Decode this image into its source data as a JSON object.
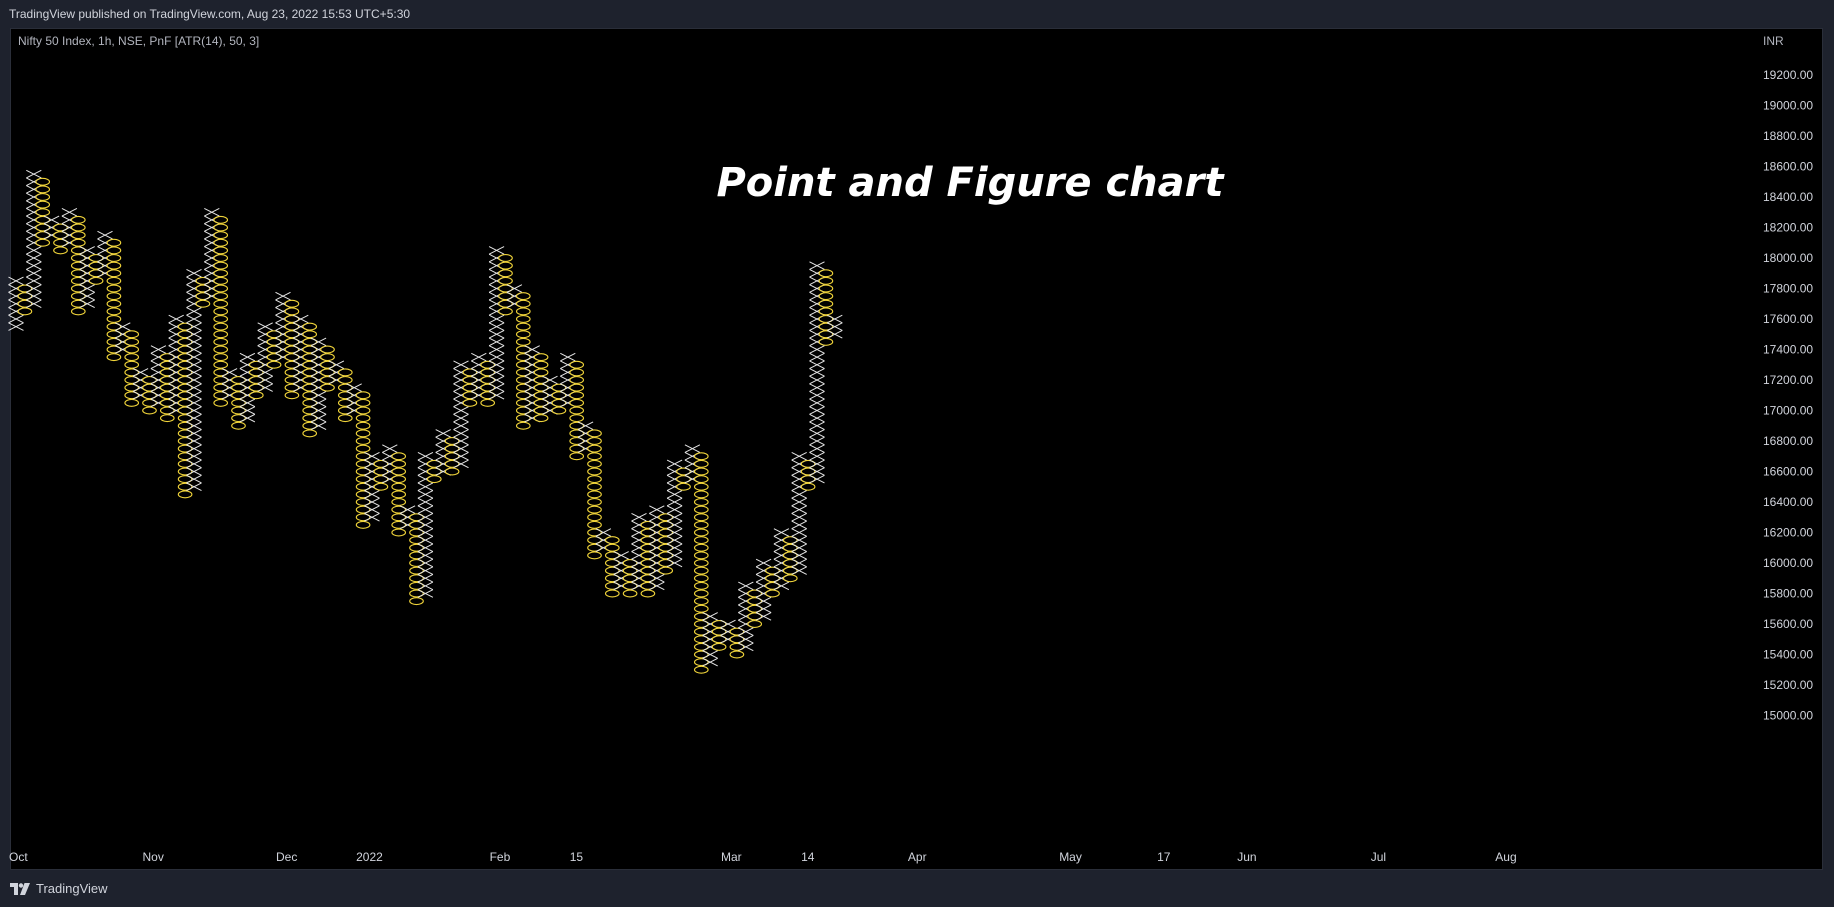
{
  "header": {
    "published": "TradingView published on TradingView.com, Aug 23, 2022 15:53 UTC+5:30"
  },
  "legend": {
    "symbol": "Nifty 50 Index, 1h, NSE, PnF [ATR(14), 50, 3]"
  },
  "headline": "Point and Figure chart",
  "footer": {
    "brand": "TradingView"
  },
  "colors": {
    "x_column": "#e6e6e6",
    "o_column": "#f0d43a",
    "background": "#000000",
    "frame": "#1e222d"
  },
  "chart_data": {
    "type": "point-and-figure",
    "box_size": 50,
    "reversal": 3,
    "currency": "INR",
    "y_ticks": [
      "19200.00",
      "19000.00",
      "18800.00",
      "18600.00",
      "18400.00",
      "18200.00",
      "18000.00",
      "17800.00",
      "17600.00",
      "17400.00",
      "17200.00",
      "17000.00",
      "16800.00",
      "16600.00",
      "16400.00",
      "16200.00",
      "16000.00",
      "15800.00",
      "15600.00",
      "15400.00",
      "15200.00",
      "15000.00"
    ],
    "y_tick_values": [
      19200,
      19000,
      18800,
      18600,
      18400,
      18200,
      18000,
      17800,
      17600,
      17400,
      17200,
      17000,
      16800,
      16600,
      16400,
      16200,
      16000,
      15800,
      15600,
      15400,
      15200,
      15000
    ],
    "x_labels": [
      {
        "label": "Oct",
        "column": 0
      },
      {
        "label": "Nov",
        "column": 15
      },
      {
        "label": "Dec",
        "column": 30
      },
      {
        "label": "2022",
        "column": 39
      },
      {
        "label": "Feb",
        "column": 54
      },
      {
        "label": "15",
        "column": 63
      },
      {
        "label": "Mar",
        "column": 80
      },
      {
        "label": "14",
        "column": 89
      },
      {
        "label": "Apr",
        "column": 101
      },
      {
        "label": "May",
        "column": 118
      },
      {
        "label": "17",
        "column": 129
      },
      {
        "label": "Jun",
        "column": 138
      },
      {
        "label": "Jul",
        "column": 153
      },
      {
        "label": "Aug",
        "column": 167
      }
    ],
    "columns": [
      {
        "t": "X",
        "lo": 17550,
        "hi": 17850
      },
      {
        "t": "O",
        "lo": 17650,
        "hi": 17800
      },
      {
        "t": "X",
        "lo": 17700,
        "hi": 18550
      },
      {
        "t": "O",
        "lo": 18100,
        "hi": 18500
      },
      {
        "t": "X",
        "lo": 18150,
        "hi": 18250
      },
      {
        "t": "O",
        "lo": 18050,
        "hi": 18200
      },
      {
        "t": "X",
        "lo": 18100,
        "hi": 18300
      },
      {
        "t": "O",
        "lo": 17650,
        "hi": 18250
      },
      {
        "t": "X",
        "lo": 17700,
        "hi": 18050
      },
      {
        "t": "O",
        "lo": 17850,
        "hi": 18000
      },
      {
        "t": "X",
        "lo": 17900,
        "hi": 18150
      },
      {
        "t": "O",
        "lo": 17350,
        "hi": 18100
      },
      {
        "t": "X",
        "lo": 17400,
        "hi": 17550
      },
      {
        "t": "O",
        "lo": 17050,
        "hi": 17500
      },
      {
        "t": "X",
        "lo": 17100,
        "hi": 17250
      },
      {
        "t": "O",
        "lo": 17000,
        "hi": 17200
      },
      {
        "t": "X",
        "lo": 17050,
        "hi": 17400
      },
      {
        "t": "O",
        "lo": 16950,
        "hi": 17350
      },
      {
        "t": "X",
        "lo": 17000,
        "hi": 17600
      },
      {
        "t": "O",
        "lo": 16450,
        "hi": 17550
      },
      {
        "t": "X",
        "lo": 16500,
        "hi": 17900
      },
      {
        "t": "O",
        "lo": 17700,
        "hi": 17850
      },
      {
        "t": "X",
        "lo": 17750,
        "hi": 18300
      },
      {
        "t": "O",
        "lo": 17050,
        "hi": 18250
      },
      {
        "t": "X",
        "lo": 17100,
        "hi": 17250
      },
      {
        "t": "O",
        "lo": 16900,
        "hi": 17200
      },
      {
        "t": "X",
        "lo": 16950,
        "hi": 17350
      },
      {
        "t": "O",
        "lo": 17100,
        "hi": 17300
      },
      {
        "t": "X",
        "lo": 17150,
        "hi": 17550
      },
      {
        "t": "O",
        "lo": 17300,
        "hi": 17500
      },
      {
        "t": "X",
        "lo": 17350,
        "hi": 17750
      },
      {
        "t": "O",
        "lo": 17100,
        "hi": 17700
      },
      {
        "t": "X",
        "lo": 17150,
        "hi": 17600
      },
      {
        "t": "O",
        "lo": 16850,
        "hi": 17550
      },
      {
        "t": "X",
        "lo": 16900,
        "hi": 17450
      },
      {
        "t": "O",
        "lo": 17150,
        "hi": 17400
      },
      {
        "t": "X",
        "lo": 17200,
        "hi": 17300
      },
      {
        "t": "O",
        "lo": 16950,
        "hi": 17250
      },
      {
        "t": "X",
        "lo": 17000,
        "hi": 17150
      },
      {
        "t": "O",
        "lo": 16250,
        "hi": 17100
      },
      {
        "t": "X",
        "lo": 16300,
        "hi": 16700
      },
      {
        "t": "O",
        "lo": 16500,
        "hi": 16650
      },
      {
        "t": "X",
        "lo": 16550,
        "hi": 16750
      },
      {
        "t": "O",
        "lo": 16200,
        "hi": 16700
      },
      {
        "t": "X",
        "lo": 16250,
        "hi": 16350
      },
      {
        "t": "O",
        "lo": 15750,
        "hi": 16300
      },
      {
        "t": "X",
        "lo": 15800,
        "hi": 16700
      },
      {
        "t": "O",
        "lo": 16550,
        "hi": 16650
      },
      {
        "t": "X",
        "lo": 16600,
        "hi": 16850
      },
      {
        "t": "O",
        "lo": 16600,
        "hi": 16800
      },
      {
        "t": "X",
        "lo": 16650,
        "hi": 17300
      },
      {
        "t": "O",
        "lo": 17050,
        "hi": 17250
      },
      {
        "t": "X",
        "lo": 17100,
        "hi": 17350
      },
      {
        "t": "O",
        "lo": 17050,
        "hi": 17300
      },
      {
        "t": "X",
        "lo": 17100,
        "hi": 18050
      },
      {
        "t": "O",
        "lo": 17650,
        "hi": 18000
      },
      {
        "t": "X",
        "lo": 17700,
        "hi": 17800
      },
      {
        "t": "O",
        "lo": 16900,
        "hi": 17750
      },
      {
        "t": "X",
        "lo": 16950,
        "hi": 17400
      },
      {
        "t": "O",
        "lo": 16950,
        "hi": 17350
      },
      {
        "t": "X",
        "lo": 17000,
        "hi": 17200
      },
      {
        "t": "O",
        "lo": 17000,
        "hi": 17150
      },
      {
        "t": "X",
        "lo": 17050,
        "hi": 17350
      },
      {
        "t": "O",
        "lo": 16700,
        "hi": 17300
      },
      {
        "t": "X",
        "lo": 16750,
        "hi": 16900
      },
      {
        "t": "O",
        "lo": 16050,
        "hi": 16850
      },
      {
        "t": "X",
        "lo": 16100,
        "hi": 16200
      },
      {
        "t": "O",
        "lo": 15800,
        "hi": 16150
      },
      {
        "t": "X",
        "lo": 15850,
        "hi": 16050
      },
      {
        "t": "O",
        "lo": 15800,
        "hi": 16000
      },
      {
        "t": "X",
        "lo": 15850,
        "hi": 16300
      },
      {
        "t": "O",
        "lo": 15800,
        "hi": 16250
      },
      {
        "t": "X",
        "lo": 15850,
        "hi": 16350
      },
      {
        "t": "O",
        "lo": 15950,
        "hi": 16300
      },
      {
        "t": "X",
        "lo": 16000,
        "hi": 16650
      },
      {
        "t": "O",
        "lo": 16500,
        "hi": 16600
      },
      {
        "t": "X",
        "lo": 16550,
        "hi": 16750
      },
      {
        "t": "O",
        "lo": 15300,
        "hi": 16700
      },
      {
        "t": "X",
        "lo": 15350,
        "hi": 15650
      },
      {
        "t": "O",
        "lo": 15450,
        "hi": 15600
      },
      {
        "t": "X",
        "lo": 15500,
        "hi": 15600
      },
      {
        "t": "O",
        "lo": 15400,
        "hi": 15550
      },
      {
        "t": "X",
        "lo": 15450,
        "hi": 15850
      },
      {
        "t": "O",
        "lo": 15600,
        "hi": 15800
      },
      {
        "t": "X",
        "lo": 15650,
        "hi": 16000
      },
      {
        "t": "O",
        "lo": 15800,
        "hi": 15950
      },
      {
        "t": "X",
        "lo": 15850,
        "hi": 16200
      },
      {
        "t": "O",
        "lo": 15900,
        "hi": 16150
      },
      {
        "t": "X",
        "lo": 15950,
        "hi": 16700
      },
      {
        "t": "O",
        "lo": 16500,
        "hi": 16650
      },
      {
        "t": "X",
        "lo": 16550,
        "hi": 17950
      },
      {
        "t": "O",
        "lo": 17450,
        "hi": 17900
      },
      {
        "t": "X",
        "lo": 17500,
        "hi": 17600
      }
    ]
  }
}
